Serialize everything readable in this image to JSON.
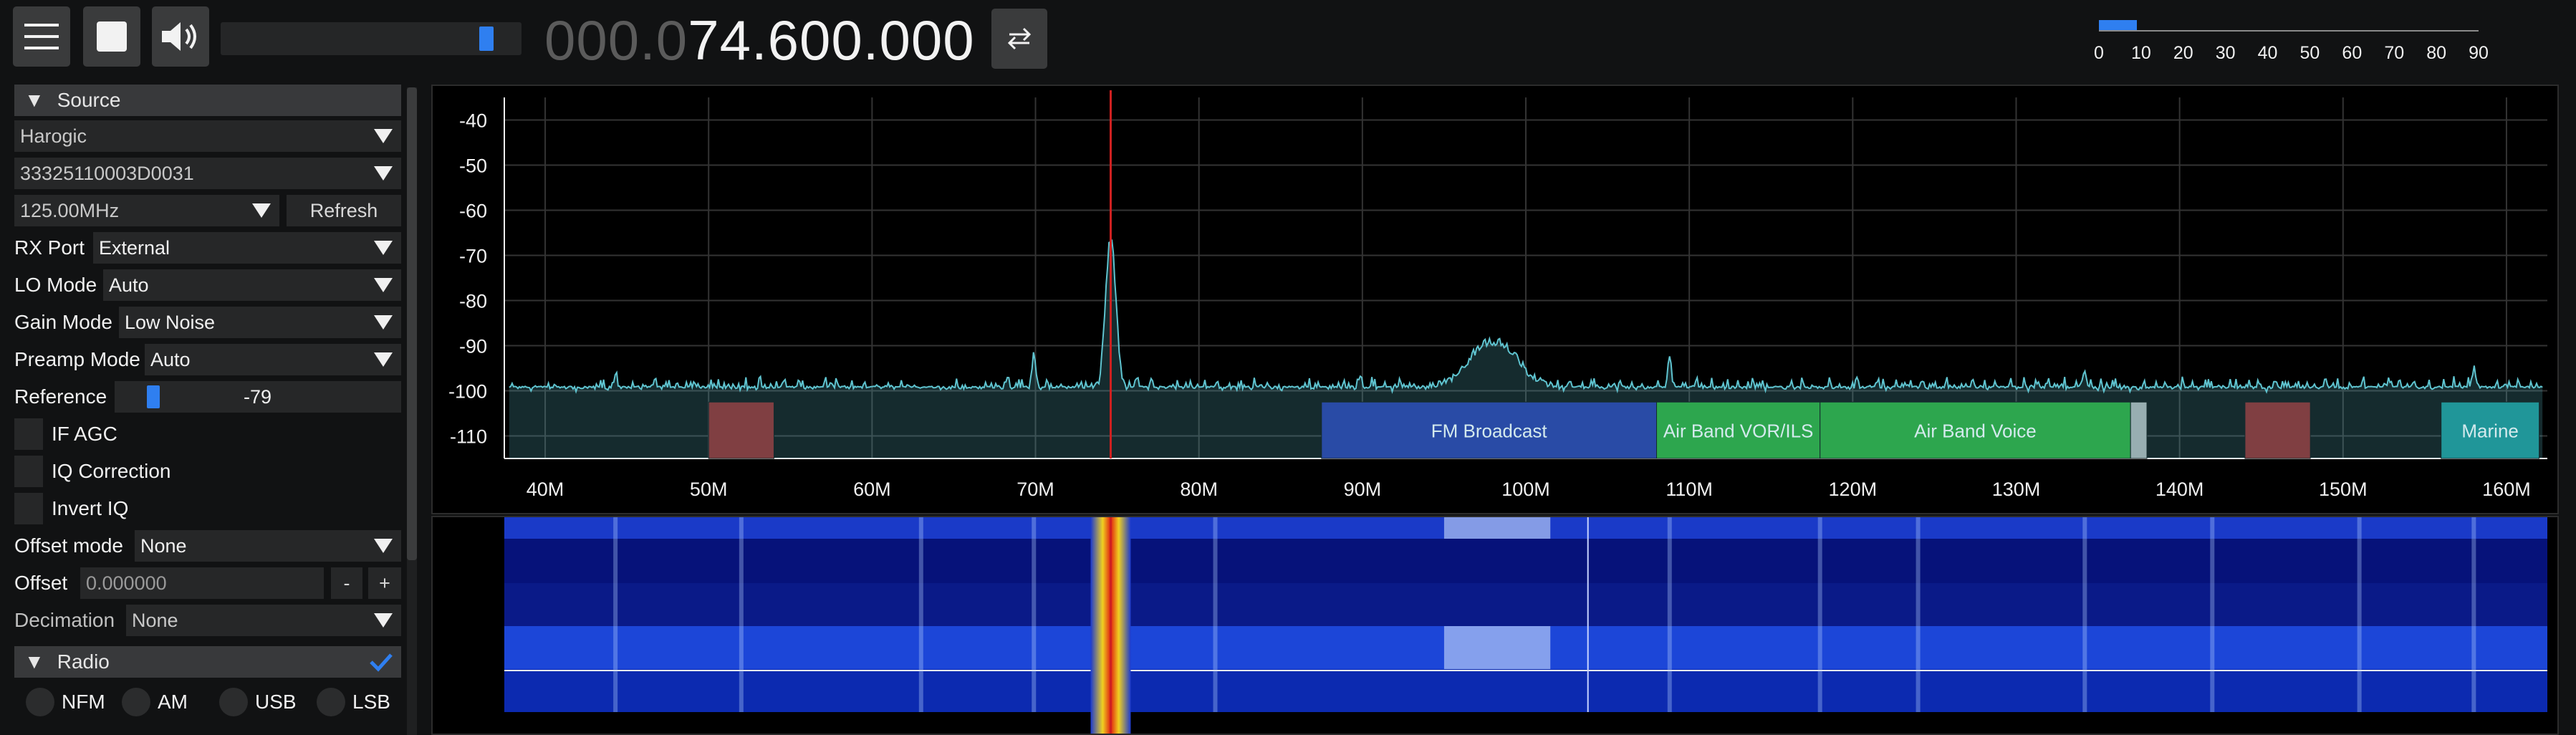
{
  "topbar": {
    "menu_icon": "hamburger-menu-icon",
    "stop_icon": "stop-icon",
    "volume_icon": "speaker-icon",
    "volume_level": 0.91,
    "frequency_dim": "000.0",
    "frequency_bright": "74.600.000",
    "swap_icon": "swap-arrows-icon",
    "snr_meter": {
      "level": 9,
      "ticks": [
        "0",
        "10",
        "20",
        "30",
        "40",
        "50",
        "60",
        "70",
        "80",
        "90"
      ]
    }
  },
  "source": {
    "header": "Source",
    "device": "Harogic",
    "serial": "33325110003D0031",
    "samplerate": "125.00MHz",
    "refresh_label": "Refresh",
    "rx_port_label": "RX Port",
    "rx_port_value": "External",
    "lo_mode_label": "LO Mode",
    "lo_mode_value": "Auto",
    "gain_mode_label": "Gain Mode",
    "gain_mode_value": "Low Noise",
    "preamp_mode_label": "Preamp Mode",
    "preamp_mode_value": "Auto",
    "reference_label": "Reference",
    "reference_value": "-79",
    "reference_level": 0.1,
    "if_agc_label": "IF AGC",
    "iq_correction_label": "IQ Correction",
    "invert_iq_label": "Invert IQ",
    "offset_mode_label": "Offset mode",
    "offset_mode_value": "None",
    "offset_label": "Offset",
    "offset_value": "0.000000",
    "offset_minus": "-",
    "offset_plus": "+",
    "decimation_label": "Decimation",
    "decimation_value": "None"
  },
  "radio": {
    "header": "Radio",
    "check_icon": "checkmark-icon",
    "modes_row1": [
      "NFM",
      "AM",
      "USB",
      "LSB"
    ]
  },
  "colors": {
    "accent": "#2f7ff0",
    "trace": "#5fc4d0",
    "vfo_line": "#d02020",
    "band_fm": "#1a2a9a",
    "band_air": "#1f9e2a",
    "band_red": "#8a1a1a",
    "band_marine": "#0f8a8a"
  },
  "chart_data": {
    "type": "line",
    "title": "",
    "xlabel": "",
    "ylabel": "",
    "x_ticks": [
      "40M",
      "50M",
      "60M",
      "70M",
      "80M",
      "90M",
      "100M",
      "110M",
      "120M",
      "130M",
      "140M",
      "150M",
      "160M"
    ],
    "y_ticks": [
      "-40",
      "-50",
      "-60",
      "-70",
      "-80",
      "-90",
      "-100",
      "-110"
    ],
    "xlim_mhz": [
      37.5,
      162.5
    ],
    "ylim_db": [
      -115,
      -35
    ],
    "grid": true,
    "vfo_mhz": 74.6,
    "noise_floor_db": -100,
    "peaks": [
      {
        "mhz": 74.6,
        "db": -66
      },
      {
        "mhz": 98.0,
        "db": -89
      },
      {
        "mhz": 69.9,
        "db": -92
      },
      {
        "mhz": 108.8,
        "db": -93
      },
      {
        "mhz": 44.3,
        "db": -96
      },
      {
        "mhz": 134.2,
        "db": -95
      },
      {
        "mhz": 158.0,
        "db": -95
      }
    ],
    "bands": [
      {
        "name": "",
        "start": 50.0,
        "end": 54.0,
        "color": "#8a1a1a"
      },
      {
        "name": "FM Broadcast",
        "start": 87.5,
        "end": 108.0,
        "color": "#1a2a9a"
      },
      {
        "name": "Air Band VOR/ILS",
        "start": 108.0,
        "end": 118.0,
        "color": "#1f9e2a"
      },
      {
        "name": "Air Band Voice",
        "start": 118.0,
        "end": 137.0,
        "color": "#1f9e2a"
      },
      {
        "name": "",
        "start": 137.0,
        "end": 138.0,
        "color": "#a8a8a8"
      },
      {
        "name": "",
        "start": 144.0,
        "end": 148.0,
        "color": "#8a1a1a"
      },
      {
        "name": "Marine",
        "start": 156.0,
        "end": 162.0,
        "color": "#0f8a8a"
      }
    ]
  }
}
